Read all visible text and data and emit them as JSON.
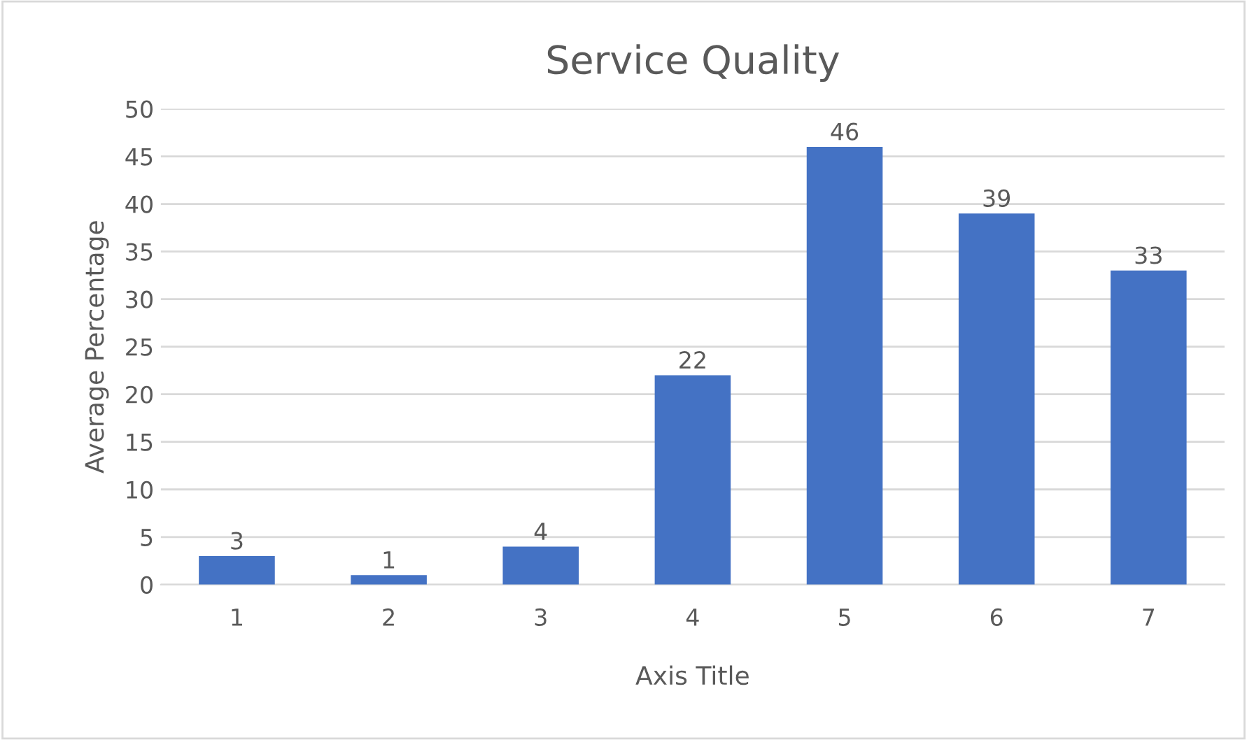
{
  "chart_data": {
    "type": "bar",
    "title": "Service Quality",
    "xlabel": "Axis Title",
    "ylabel": "Average Percentage",
    "categories": [
      "1",
      "2",
      "3",
      "4",
      "5",
      "6",
      "7"
    ],
    "values": [
      3,
      1,
      4,
      22,
      46,
      39,
      33
    ],
    "color": "#4472c4",
    "ylim": [
      0,
      50
    ],
    "yticks": [
      0,
      5,
      10,
      15,
      20,
      25,
      30,
      35,
      40,
      45,
      50
    ],
    "grid": "y",
    "data_labels": true,
    "legend": false
  }
}
